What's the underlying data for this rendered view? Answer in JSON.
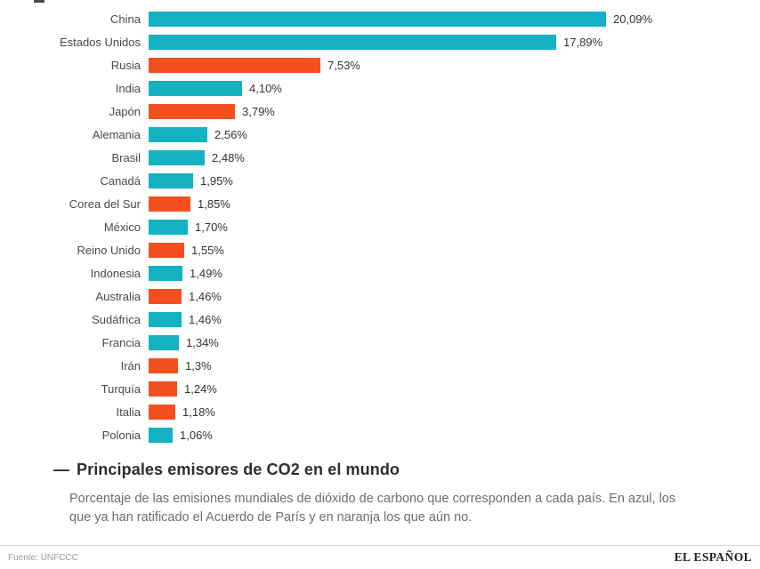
{
  "chart_data": {
    "type": "bar",
    "orientation": "horizontal",
    "title": "Principales emisores de CO2 en el mundo",
    "title_prefix": "—",
    "subtitle": "Porcentaje de las emisiones mundiales de dióxido de carbono que corresponden a cada país. En azul, los que ya han ratificado el Acuerdo de París y en naranja los que aún no.",
    "xlabel": "",
    "ylabel": "",
    "xlim": [
      0,
      21
    ],
    "grid": false,
    "legend_position": "none",
    "categories": [
      "China",
      "Estados Unidos",
      "Rusia",
      "India",
      "Japón",
      "Alemania",
      "Brasil",
      "Canadá",
      "Corea del Sur",
      "México",
      "Reino Unido",
      "Indonesia",
      "Australia",
      "Sudáfrica",
      "Francia",
      "Irán",
      "Turquía",
      "Italia",
      "Polonia"
    ],
    "values": [
      20.09,
      17.89,
      7.53,
      4.1,
      3.79,
      2.56,
      2.48,
      1.95,
      1.85,
      1.7,
      1.55,
      1.49,
      1.46,
      1.46,
      1.34,
      1.3,
      1.24,
      1.18,
      1.06
    ],
    "value_labels": [
      "20,09%",
      "17,89%",
      "7,53%",
      "4,10%",
      "3,79%",
      "2,56%",
      "2,48%",
      "1,95%",
      "1,85%",
      "1,70%",
      "1,55%",
      "1,49%",
      "1,46%",
      "1,46%",
      "1,34%",
      "1,3%",
      "1,24%",
      "1,18%",
      "1,06%"
    ],
    "series_keys": [
      "ratified",
      "ratified",
      "not_ratified",
      "ratified",
      "not_ratified",
      "ratified",
      "ratified",
      "ratified",
      "not_ratified",
      "ratified",
      "not_ratified",
      "ratified",
      "not_ratified",
      "ratified",
      "ratified",
      "not_ratified",
      "not_ratified",
      "not_ratified",
      "ratified"
    ],
    "colors": {
      "ratified": "#14b1c2",
      "not_ratified": "#f4501e"
    },
    "color_meaning": {
      "ratified": "azul: ya han ratificado el Acuerdo de París",
      "not_ratified": "naranja: aún no han ratificado"
    }
  },
  "footer": {
    "source": "Fuente: UNFCCC",
    "brand": "EL ESPAÑOL"
  }
}
